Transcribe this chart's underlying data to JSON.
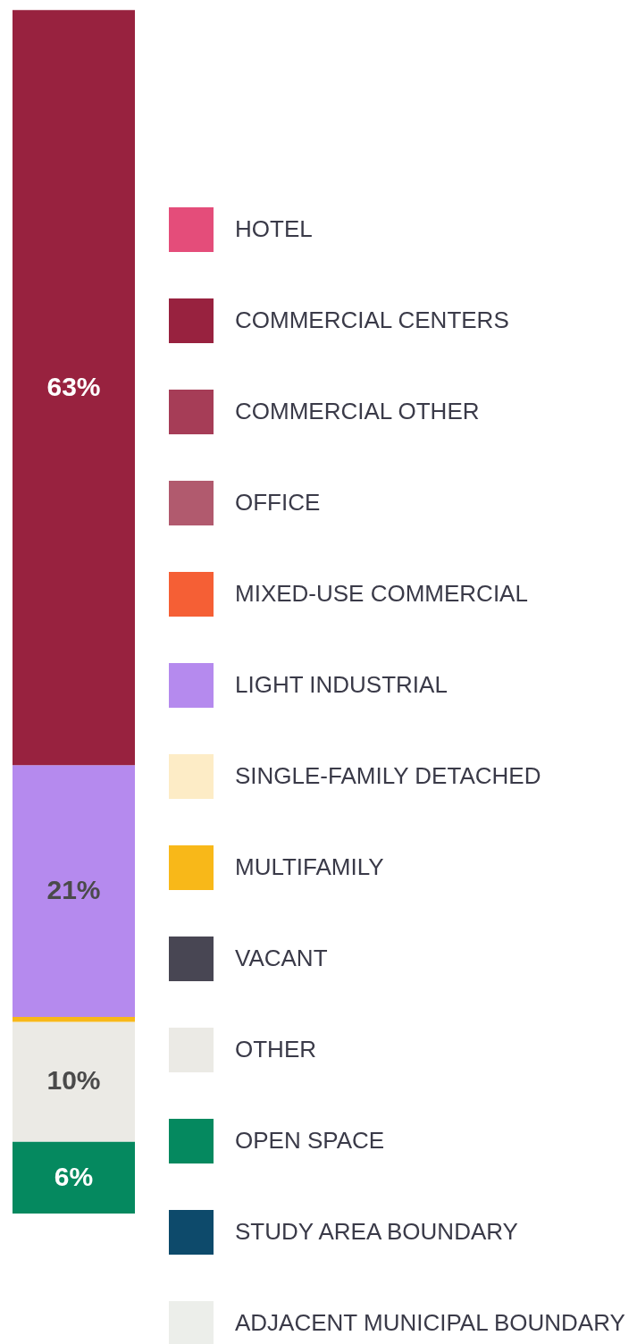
{
  "chart_data": {
    "type": "bar",
    "stacked": true,
    "categories": [
      null
    ],
    "ylim": [
      0,
      100.5
    ],
    "tick_labels": false,
    "legend": "right",
    "series": [
      {
        "name": "ADJACENT MUNICIPAL BOUNDARY",
        "color": "#eceeea",
        "values": [
          null
        ]
      },
      {
        "name": "STUDY AREA BOUNDARY",
        "color": "#0d4a6b",
        "values": [
          null
        ]
      },
      {
        "name": "OPEN SPACE",
        "color": "#05895f",
        "values": [
          6
        ],
        "value_labels": [
          "6%"
        ]
      },
      {
        "name": "OTHER",
        "color": "#ebeae5",
        "values": [
          10
        ],
        "value_labels": [
          "10%"
        ]
      },
      {
        "name": "VACANT",
        "color": "#484653",
        "values": [
          null
        ]
      },
      {
        "name": "MULTIFAMILY",
        "color": "#f8b819",
        "values": [
          0.4
        ],
        "value_labels": [
          null
        ]
      },
      {
        "name": "SINGLE-FAMILY DETACHED",
        "color": "#fdecc6",
        "values": [
          null
        ]
      },
      {
        "name": "LIGHT INDUSTRIAL",
        "color": "#b58aee",
        "values": [
          21
        ],
        "value_labels": [
          "21%"
        ]
      },
      {
        "name": "MIXED-USE COMMERCIAL",
        "color": "#f55f35",
        "values": [
          null
        ]
      },
      {
        "name": "OFFICE",
        "color": "#b15a6e",
        "values": [
          null
        ]
      },
      {
        "name": "COMMERCIAL OTHER",
        "color": "#a63d57",
        "values": [
          null
        ]
      },
      {
        "name": "COMMERCIAL CENTERS",
        "color": "#98223f",
        "values": [
          63
        ],
        "value_labels": [
          "63%"
        ]
      },
      {
        "name": "HOTEL",
        "color": "#e44d7a",
        "values": [
          null
        ]
      }
    ]
  }
}
